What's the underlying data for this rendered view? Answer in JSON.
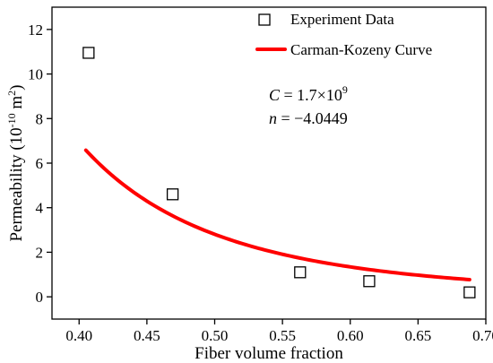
{
  "chart_data": {
    "type": "scatter",
    "title": "",
    "xlabel": "Fiber volume fraction",
    "ylabel_main": "Permeability (10",
    "ylabel_exp": "-10",
    "ylabel_unit": " m",
    "ylabel_unit_exp": "2",
    "ylabel_close": ")",
    "xlim": [
      0.38,
      0.7
    ],
    "ylim": [
      -1,
      13
    ],
    "xticks": [
      0.4,
      0.45,
      0.5,
      0.55,
      0.6,
      0.65,
      0.7
    ],
    "xtick_labels": [
      "0.40",
      "0.45",
      "0.50",
      "0.55",
      "0.60",
      "0.65",
      "0.70"
    ],
    "yticks": [
      0,
      2,
      4,
      6,
      8,
      10,
      12
    ],
    "ytick_labels": [
      "0",
      "2",
      "4",
      "6",
      "8",
      "10",
      "12"
    ],
    "grid": false,
    "legend_position": "top-right",
    "series": [
      {
        "name": "Experiment Data",
        "kind": "markers",
        "marker": "open-square",
        "color": "#000000",
        "x": [
          0.407,
          0.469,
          0.563,
          0.614,
          0.688
        ],
        "y": [
          10.95,
          4.6,
          1.1,
          0.7,
          0.2
        ]
      },
      {
        "name": "Carman-Kozeny Curve",
        "kind": "line",
        "color": "#ff0000",
        "formula": "y = C * x^n",
        "x_range": [
          0.405,
          0.688
        ]
      }
    ],
    "annotations": {
      "c_symbol": "C",
      "c_value": " = 1.7×10",
      "c_exp": "9",
      "n_symbol": "n",
      "n_value": " = −4.0449"
    },
    "model": {
      "C": 1.7,
      "n": -4.0449,
      "scale": 10
    }
  }
}
